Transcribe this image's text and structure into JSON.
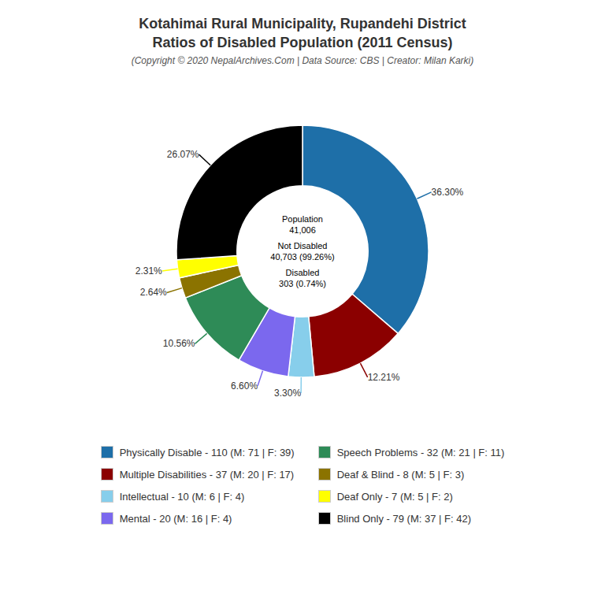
{
  "chart_data": {
    "type": "pie",
    "title": "Kotahimai Rural Municipality, Rupandehi District\nRatios of Disabled Population (2011 Census)",
    "subtitle": "(Copyright © 2020 NepalArchives.Com | Data Source: CBS | Creator: Milan Karki)",
    "categories": [
      "Physically Disable - 110 (M: 71 | F: 39)",
      "Multiple Disabilities - 37 (M: 20 | F: 17)",
      "Intellectual - 10 (M: 6 | F: 4)",
      "Mental - 20 (M: 16 | F: 4)",
      "Speech Problems - 32 (M: 21 | F: 11)",
      "Deaf & Blind - 8 (M: 5 | F: 3)",
      "Deaf Only - 7 (M: 5 | F: 2)",
      "Blind Only - 79 (M: 37 | F: 42)"
    ],
    "values": [
      36.3,
      12.21,
      3.3,
      6.6,
      10.56,
      2.64,
      2.31,
      26.07
    ],
    "value_labels": [
      "36.30%",
      "12.21%",
      "3.30%",
      "6.60%",
      "10.56%",
      "2.64%",
      "2.31%",
      "26.07%"
    ],
    "colors": [
      "#1e6fa8",
      "#8b0000",
      "#87ceeb",
      "#7b68ee",
      "#2e8b57",
      "#8b7300",
      "#ffff00",
      "#000000"
    ],
    "annotations": [
      "Population",
      "41,006",
      "Not Disabled",
      "40,703 (99.26%)",
      "Disabled",
      "303 (0.74%)"
    ],
    "data_labels": true,
    "legend": "bottom"
  }
}
